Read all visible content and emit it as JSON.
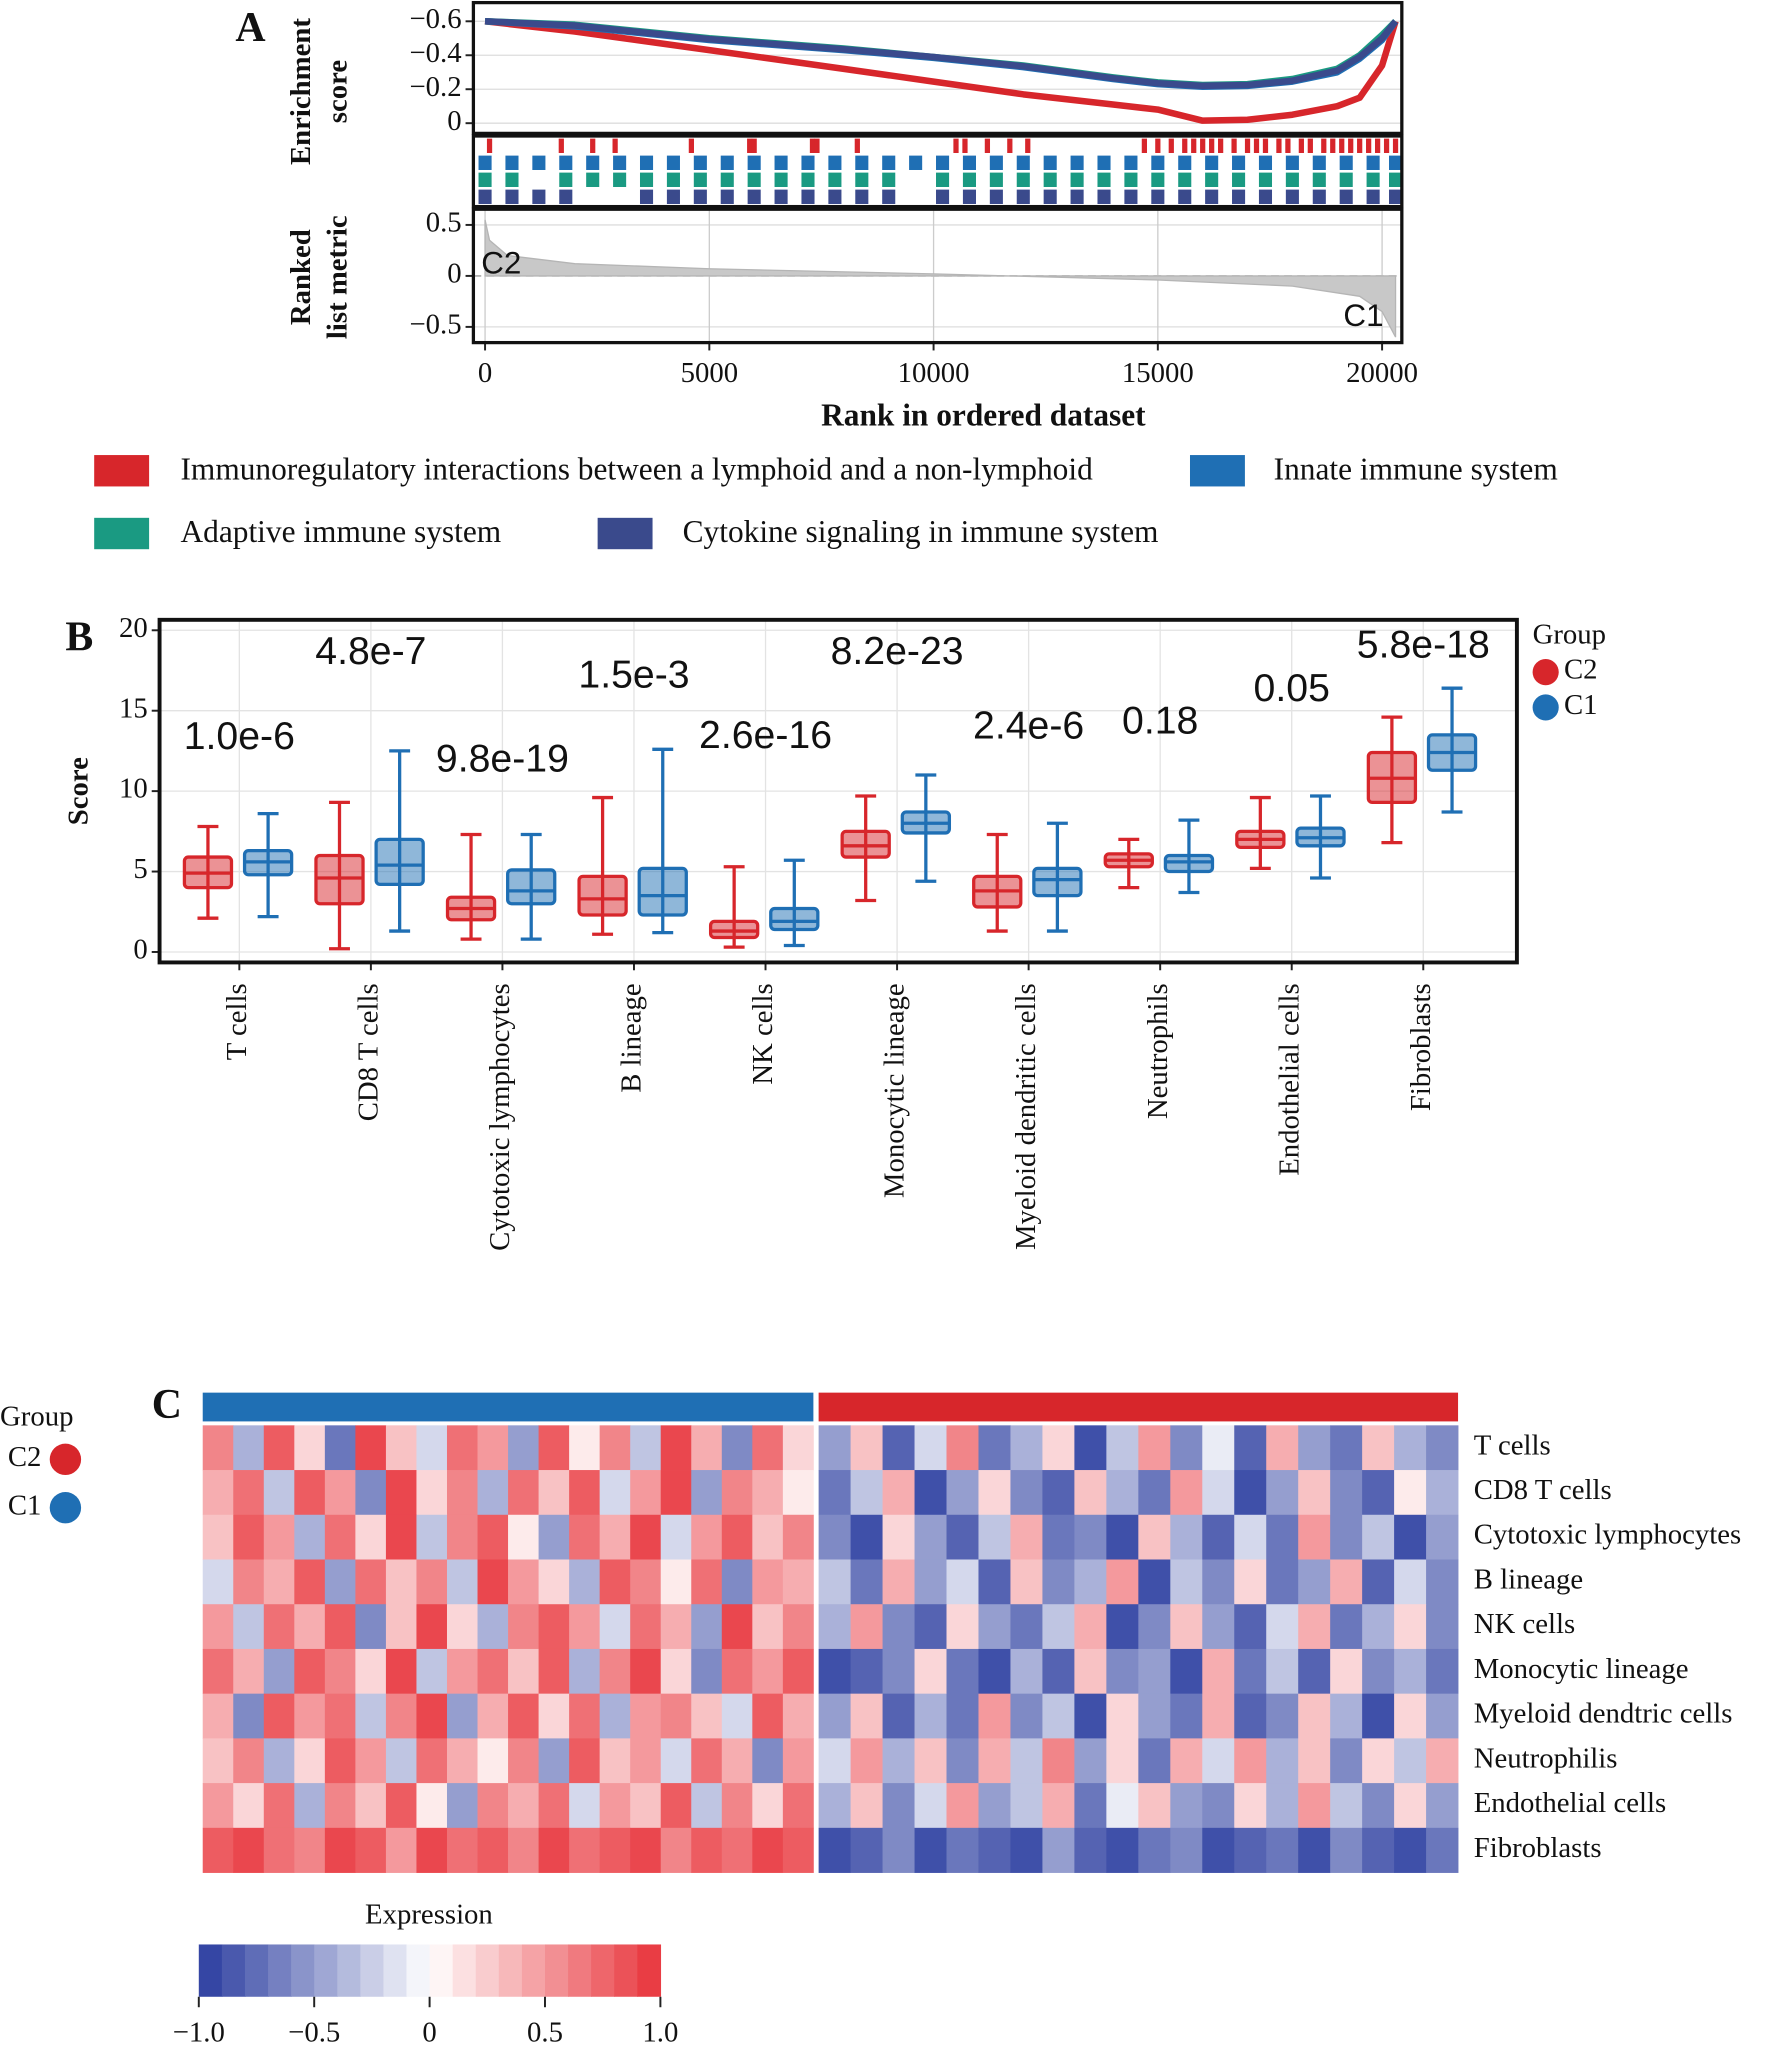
{
  "chart_data": [
    {
      "type": "gsea",
      "panel": "A",
      "ylabel": [
        "Enrichment",
        "score"
      ],
      "xlabel": "Rank in ordered dataset",
      "x": [
        0,
        2000,
        5000,
        8000,
        10000,
        12000,
        14000,
        15000,
        16000,
        17000,
        18000,
        19000,
        19500,
        20000,
        20300
      ],
      "xlim": [
        -260,
        20440
      ],
      "xticks": [
        0,
        5000,
        10000,
        15000,
        20000
      ],
      "ylim": [
        0.06,
        -0.71
      ],
      "yticks": [
        {
          "value": -0.6,
          "label": "−0.6"
        },
        {
          "value": -0.4,
          "label": "−0.4"
        },
        {
          "value": -0.2,
          "label": "−0.2"
        },
        0
      ],
      "series": [
        {
          "name": "Immunoregulatory interactions between a lymphoid and a non-lymphoid",
          "color": "#d7262b",
          "values": [
            -0.6,
            -0.54,
            -0.43,
            -0.32,
            -0.245,
            -0.17,
            -0.11,
            -0.08,
            -0.015,
            -0.02,
            -0.05,
            -0.1,
            -0.15,
            -0.34,
            -0.6
          ],
          "hits": [
            100,
            1700,
            2400,
            2900,
            4600,
            5900,
            6000,
            7300,
            7400,
            8300,
            10500,
            10700,
            11200,
            11700,
            12100,
            14700,
            15000,
            15300,
            15600,
            15800,
            16000,
            16200,
            16400,
            16700,
            17000,
            17200,
            17400,
            17700,
            17900,
            18200,
            18400,
            18700,
            18900,
            19100,
            19300,
            19500,
            19700,
            19900,
            20100,
            20300
          ]
        },
        {
          "name": "Innate immune system",
          "color": "#1f6fb4",
          "values": [
            -0.6,
            -0.57,
            -0.49,
            -0.43,
            -0.385,
            -0.33,
            -0.26,
            -0.23,
            -0.215,
            -0.22,
            -0.245,
            -0.3,
            -0.38,
            -0.49,
            -0.6
          ],
          "hits": [
            0,
            600,
            1200,
            1800,
            2400,
            3000,
            3600,
            4200,
            4800,
            5400,
            6000,
            6600,
            7200,
            7800,
            8400,
            9000,
            9600,
            10200,
            10800,
            11400,
            12000,
            12600,
            13200,
            13800,
            14400,
            15000,
            15600,
            16200,
            16800,
            17400,
            18000,
            18600,
            19200,
            19800,
            20300
          ]
        },
        {
          "name": "Adaptive immune system",
          "color": "#1a9a82",
          "values": [
            -0.6,
            -0.58,
            -0.5,
            -0.44,
            -0.39,
            -0.34,
            -0.27,
            -0.24,
            -0.225,
            -0.23,
            -0.26,
            -0.32,
            -0.4,
            -0.52,
            -0.6
          ],
          "hits": [
            0,
            600,
            1800,
            2400,
            3000,
            3600,
            4200,
            4800,
            5400,
            6000,
            6600,
            7200,
            7800,
            8400,
            9000,
            10200,
            10800,
            11400,
            12000,
            12600,
            13200,
            13800,
            14400,
            15000,
            15600,
            16200,
            16800,
            17400,
            18000,
            18600,
            19200,
            19800,
            20300
          ]
        },
        {
          "name": "Cytokine signaling in immune system",
          "color": "#3a4a8c",
          "values": [
            -0.6,
            -0.575,
            -0.495,
            -0.435,
            -0.39,
            -0.335,
            -0.265,
            -0.235,
            -0.22,
            -0.225,
            -0.25,
            -0.31,
            -0.39,
            -0.5,
            -0.6
          ],
          "hits": [
            0,
            600,
            1200,
            1800,
            3600,
            4200,
            4800,
            5400,
            6000,
            6600,
            7200,
            7800,
            8400,
            9000,
            10200,
            10800,
            11400,
            12000,
            12600,
            13200,
            13800,
            14400,
            15000,
            15600,
            16200,
            16800,
            17400,
            18000,
            18600,
            19200,
            19800,
            20300
          ]
        }
      ],
      "metric": {
        "ylabel": [
          "Ranked",
          "list metric"
        ],
        "x": [
          0,
          100,
          500,
          2000,
          5000,
          10000,
          15000,
          18000,
          19500,
          20000,
          20300
        ],
        "values": [
          0.55,
          0.35,
          0.2,
          0.12,
          0.07,
          0.02,
          -0.04,
          -0.1,
          -0.2,
          -0.35,
          -0.6
        ],
        "ylim": [
          -0.654,
          0.654
        ],
        "yticks": [
          0.5,
          0,
          {
            "value": -0.5,
            "label": "−0.5"
          }
        ],
        "annotations": [
          "C2",
          "C1"
        ]
      }
    },
    {
      "type": "box",
      "panel": "B",
      "ylabel": "Score",
      "legend_title": "Group",
      "grid": true,
      "categories": [
        "T cells",
        "CD8 T cells",
        "Cytotoxic lymphocytes",
        "B lineage",
        "NK cells",
        "Monocytic lineage",
        "Myeloid dendritic cells",
        "Neutrophils",
        "Endothelial cells",
        "Fibroblasts"
      ],
      "ylim": [
        -0.65,
        20.65
      ],
      "yticks": [
        0,
        5,
        10,
        15,
        20
      ],
      "series": [
        {
          "name": "C2",
          "color": "#d7262b",
          "boxes": [
            [
              2.1,
              4.0,
              4.9,
              5.9,
              7.8
            ],
            [
              0.2,
              3.0,
              4.6,
              6.0,
              9.3
            ],
            [
              0.8,
              2.0,
              2.7,
              3.4,
              7.3
            ],
            [
              1.1,
              2.3,
              3.3,
              4.7,
              9.6
            ],
            [
              0.3,
              0.9,
              1.3,
              1.9,
              5.3
            ],
            [
              3.2,
              5.9,
              6.6,
              7.5,
              9.7
            ],
            [
              1.3,
              2.8,
              3.8,
              4.7,
              7.3
            ],
            [
              4.0,
              5.3,
              5.7,
              6.1,
              7.0
            ],
            [
              5.2,
              6.5,
              7.0,
              7.5,
              9.6
            ],
            [
              6.8,
              9.3,
              10.8,
              12.4,
              14.6
            ]
          ]
        },
        {
          "name": "C1",
          "color": "#1f6fb4",
          "boxes": [
            [
              2.2,
              4.8,
              5.6,
              6.3,
              8.6
            ],
            [
              1.3,
              4.2,
              5.4,
              7.0,
              12.5
            ],
            [
              0.8,
              3.0,
              3.8,
              5.1,
              7.3
            ],
            [
              1.2,
              2.3,
              3.5,
              5.2,
              12.6
            ],
            [
              0.4,
              1.4,
              1.9,
              2.7,
              5.7
            ],
            [
              4.4,
              7.4,
              8.0,
              8.7,
              11.0
            ],
            [
              1.3,
              3.5,
              4.5,
              5.2,
              8.0
            ],
            [
              3.7,
              5.0,
              5.6,
              6.0,
              8.2
            ],
            [
              4.6,
              6.6,
              7.1,
              7.7,
              9.7
            ],
            [
              8.7,
              11.3,
              12.4,
              13.5,
              16.4
            ]
          ]
        }
      ],
      "annotations": [
        "1.0e-6",
        "4.8e-7",
        "9.8e-19",
        "1.5e-3",
        "2.6e-16",
        "8.2e-23",
        "2.4e-6",
        "0.18",
        "0.05",
        "5.8e-18"
      ]
    },
    {
      "type": "heatmap",
      "panel": "C",
      "legend_title": "Group",
      "rows": [
        "T cells",
        "CD8 T cells",
        "Cytotoxic lymphocytes",
        "B lineage",
        "NK cells",
        "Monocytic lineage",
        "Myeloid dendtric cells",
        "Neutrophilis",
        "Endothelial cells",
        "Fibroblasts"
      ],
      "series": [
        {
          "name": "C1",
          "color": "#1f6fb4",
          "values": [
            [
              0.6,
              -0.4,
              0.8,
              0.2,
              -0.7,
              0.9,
              0.3,
              -0.2,
              0.7,
              0.5,
              -0.5,
              0.8,
              0.1,
              0.6,
              -0.3,
              0.9,
              0.4,
              -0.6,
              0.7,
              0.2
            ],
            [
              0.4,
              0.7,
              -0.3,
              0.8,
              0.5,
              -0.6,
              0.9,
              0.2,
              0.6,
              -0.4,
              0.7,
              0.3,
              0.8,
              -0.2,
              0.5,
              0.9,
              -0.5,
              0.6,
              0.4,
              0.1
            ],
            [
              0.3,
              0.8,
              0.5,
              -0.4,
              0.7,
              0.2,
              0.9,
              -0.3,
              0.6,
              0.8,
              0.1,
              -0.5,
              0.7,
              0.4,
              0.9,
              -0.2,
              0.5,
              0.8,
              0.3,
              0.6
            ],
            [
              -0.2,
              0.6,
              0.4,
              0.8,
              -0.5,
              0.7,
              0.3,
              0.6,
              -0.3,
              0.9,
              0.5,
              0.2,
              -0.4,
              0.8,
              0.6,
              0.1,
              0.7,
              -0.6,
              0.5,
              0.4
            ],
            [
              0.5,
              -0.3,
              0.7,
              0.4,
              0.8,
              -0.6,
              0.3,
              0.9,
              0.2,
              -0.4,
              0.6,
              0.8,
              0.5,
              -0.2,
              0.7,
              0.4,
              -0.5,
              0.9,
              0.3,
              0.6
            ],
            [
              0.7,
              0.4,
              -0.5,
              0.8,
              0.6,
              0.2,
              0.9,
              -0.3,
              0.5,
              0.7,
              0.3,
              0.8,
              -0.4,
              0.6,
              0.9,
              0.2,
              -0.6,
              0.7,
              0.5,
              0.8
            ],
            [
              0.4,
              -0.6,
              0.8,
              0.5,
              0.7,
              -0.3,
              0.6,
              0.9,
              -0.5,
              0.4,
              0.8,
              0.2,
              0.7,
              -0.4,
              0.5,
              0.6,
              0.3,
              -0.2,
              0.8,
              0.4
            ],
            [
              0.3,
              0.6,
              -0.4,
              0.2,
              0.8,
              0.5,
              -0.3,
              0.7,
              0.4,
              0.1,
              0.6,
              -0.5,
              0.8,
              0.3,
              0.5,
              -0.2,
              0.7,
              0.4,
              -0.6,
              0.5
            ],
            [
              0.5,
              0.2,
              0.7,
              -0.4,
              0.6,
              0.3,
              0.8,
              0.1,
              -0.5,
              0.6,
              0.4,
              0.7,
              -0.2,
              0.5,
              0.3,
              0.8,
              -0.3,
              0.6,
              0.2,
              0.7
            ],
            [
              0.8,
              0.9,
              0.7,
              0.6,
              0.9,
              0.8,
              0.5,
              0.9,
              0.7,
              0.8,
              0.6,
              0.9,
              0.7,
              0.8,
              0.9,
              0.6,
              0.8,
              0.7,
              0.9,
              0.8
            ]
          ]
        },
        {
          "name": "C2",
          "color": "#d7262b",
          "values": [
            [
              -0.5,
              0.3,
              -0.8,
              -0.2,
              0.6,
              -0.7,
              -0.4,
              0.2,
              -0.9,
              -0.3,
              0.5,
              -0.6,
              -0.1,
              -0.8,
              0.4,
              -0.5,
              -0.7,
              0.3,
              -0.4,
              -0.6
            ],
            [
              -0.7,
              -0.3,
              0.4,
              -0.9,
              -0.5,
              0.2,
              -0.6,
              -0.8,
              0.3,
              -0.4,
              -0.7,
              0.5,
              -0.2,
              -0.9,
              -0.5,
              0.3,
              -0.6,
              -0.8,
              0.1,
              -0.4
            ],
            [
              -0.6,
              -0.9,
              0.2,
              -0.5,
              -0.8,
              -0.3,
              0.4,
              -0.7,
              -0.6,
              -0.9,
              0.3,
              -0.4,
              -0.8,
              -0.2,
              -0.7,
              0.5,
              -0.6,
              -0.3,
              -0.9,
              -0.5
            ],
            [
              -0.3,
              -0.7,
              0.4,
              -0.5,
              -0.2,
              -0.8,
              0.3,
              -0.6,
              -0.4,
              0.5,
              -0.9,
              -0.3,
              -0.6,
              0.2,
              -0.7,
              -0.5,
              0.4,
              -0.8,
              -0.2,
              -0.6
            ],
            [
              -0.4,
              0.5,
              -0.6,
              -0.8,
              0.2,
              -0.5,
              -0.7,
              -0.3,
              0.4,
              -0.9,
              -0.6,
              0.3,
              -0.5,
              -0.8,
              -0.2,
              0.4,
              -0.7,
              -0.4,
              0.2,
              -0.6
            ],
            [
              -0.9,
              -0.8,
              -0.6,
              0.2,
              -0.7,
              -0.9,
              -0.4,
              -0.8,
              0.3,
              -0.6,
              -0.5,
              -0.9,
              0.4,
              -0.7,
              -0.3,
              -0.8,
              0.2,
              -0.6,
              -0.4,
              -0.7
            ],
            [
              -0.5,
              0.3,
              -0.8,
              -0.4,
              -0.7,
              0.5,
              -0.6,
              -0.3,
              -0.9,
              0.2,
              -0.5,
              -0.7,
              0.4,
              -0.8,
              -0.6,
              0.3,
              -0.4,
              -0.9,
              0.2,
              -0.5
            ],
            [
              -0.2,
              0.5,
              -0.4,
              0.3,
              -0.6,
              0.4,
              -0.3,
              0.6,
              -0.5,
              0.2,
              -0.7,
              0.4,
              -0.2,
              0.5,
              -0.4,
              0.3,
              -0.6,
              0.2,
              -0.3,
              0.4
            ],
            [
              -0.4,
              0.3,
              -0.6,
              -0.2,
              0.5,
              -0.5,
              -0.3,
              0.4,
              -0.7,
              -0.1,
              0.3,
              -0.5,
              -0.6,
              0.2,
              -0.4,
              0.5,
              -0.3,
              -0.6,
              0.2,
              -0.5
            ],
            [
              -0.9,
              -0.8,
              -0.6,
              -0.9,
              -0.7,
              -0.8,
              -0.9,
              -0.5,
              -0.8,
              -0.9,
              -0.7,
              -0.6,
              -0.9,
              -0.8,
              -0.7,
              -0.9,
              -0.6,
              -0.8,
              -0.9,
              -0.7
            ]
          ]
        }
      ],
      "colorbar": {
        "title": "Expression",
        "lim": [
          -1,
          1
        ],
        "low": "#2a3c9f",
        "high": "#e8333a",
        "ticks": [
          {
            "value": -1,
            "label": "−1.0"
          },
          {
            "value": -0.5,
            "label": "−0.5"
          },
          0,
          0.5,
          {
            "value": 1,
            "label": "1.0"
          }
        ]
      }
    }
  ]
}
